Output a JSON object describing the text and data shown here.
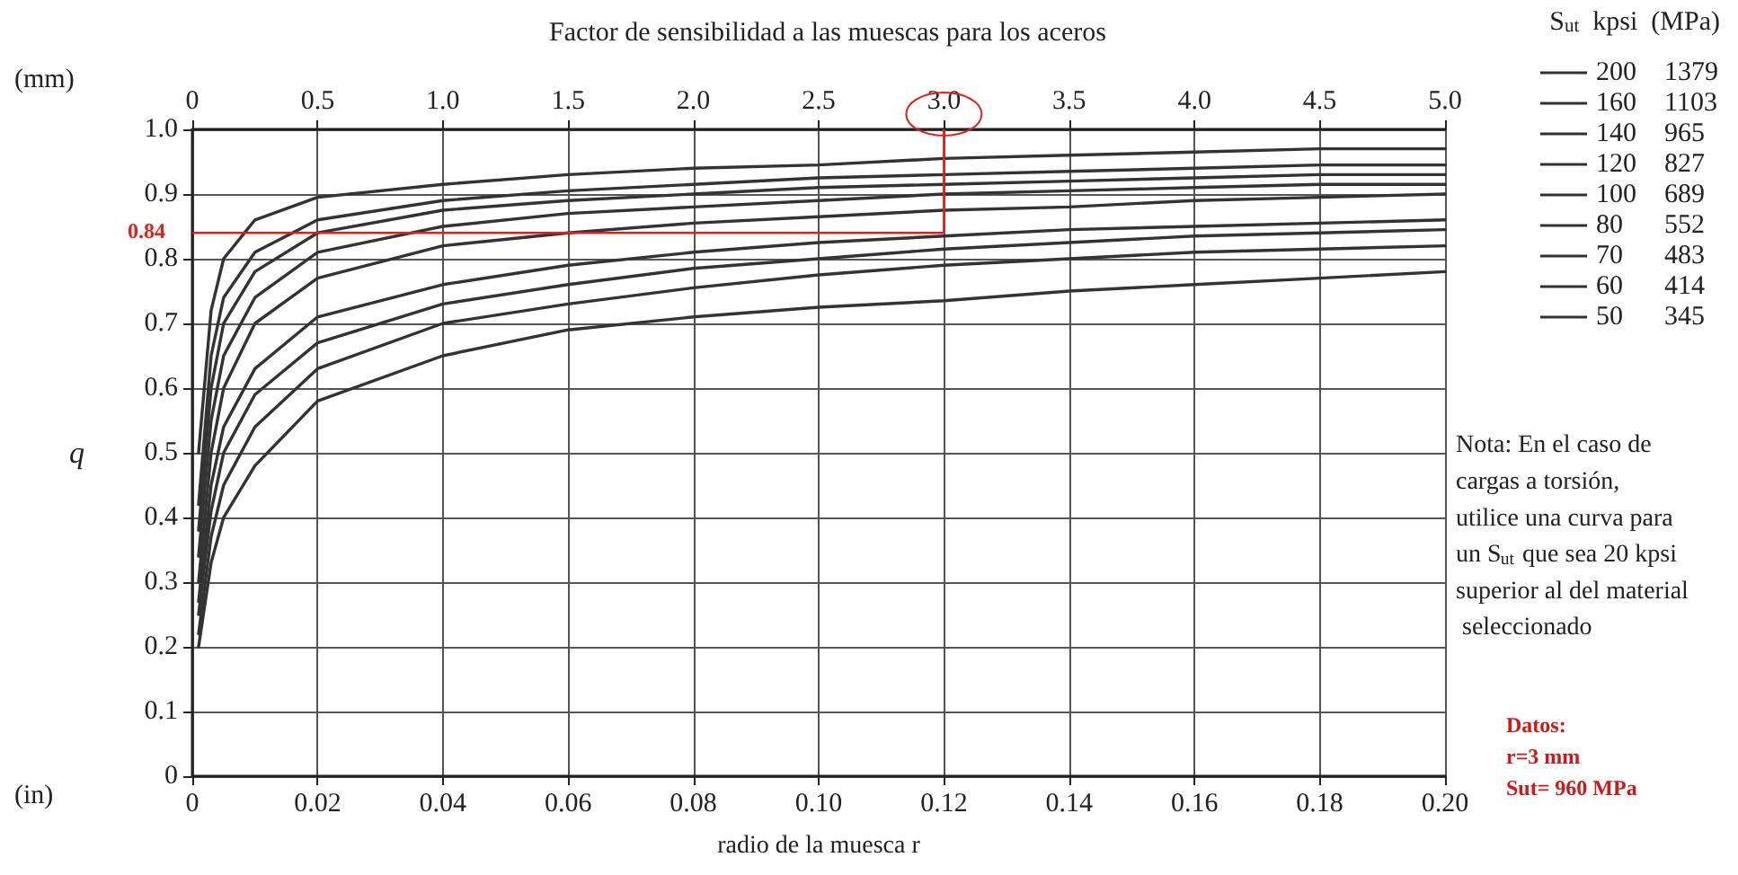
{
  "chart_data": {
    "type": "line",
    "title": "Factor de sensibilidad a las muescas para los aceros",
    "xlabel": "radio de la muesca r",
    "ylabel": "q",
    "x2label": "(mm)",
    "legend_title": "S$_{ut}$  kpsi  (MPa)",
    "x": [
      0.001,
      0.003,
      0.005,
      0.01,
      0.02,
      0.04,
      0.06,
      0.08,
      0.1,
      0.12,
      0.14,
      0.16,
      0.18,
      0.2
    ],
    "series": [
      {
        "name": "200  1379",
        "color": "#333333",
        "values": [
          0.5,
          0.72,
          0.8,
          0.86,
          0.895,
          0.915,
          0.93,
          0.94,
          0.945,
          0.955,
          0.96,
          0.965,
          0.97,
          0.97
        ]
      },
      {
        "name": "160  1103",
        "color": "#333333",
        "values": [
          0.42,
          0.65,
          0.74,
          0.81,
          0.86,
          0.89,
          0.905,
          0.915,
          0.925,
          0.93,
          0.935,
          0.94,
          0.945,
          0.945
        ]
      },
      {
        "name": "140  965",
        "color": "#333333",
        "values": [
          0.38,
          0.6,
          0.7,
          0.78,
          0.84,
          0.875,
          0.89,
          0.9,
          0.91,
          0.915,
          0.92,
          0.925,
          0.93,
          0.93
        ]
      },
      {
        "name": "120  827",
        "color": "#333333",
        "values": [
          0.34,
          0.55,
          0.65,
          0.74,
          0.81,
          0.85,
          0.87,
          0.88,
          0.89,
          0.9,
          0.905,
          0.91,
          0.915,
          0.915
        ]
      },
      {
        "name": "100  689",
        "color": "#333333",
        "values": [
          0.3,
          0.5,
          0.6,
          0.7,
          0.77,
          0.82,
          0.84,
          0.855,
          0.865,
          0.875,
          0.88,
          0.89,
          0.895,
          0.9
        ]
      },
      {
        "name": "80  552",
        "color": "#333333",
        "values": [
          0.27,
          0.45,
          0.54,
          0.63,
          0.71,
          0.76,
          0.79,
          0.81,
          0.825,
          0.835,
          0.845,
          0.85,
          0.855,
          0.86
        ]
      },
      {
        "name": "70  483",
        "color": "#333333",
        "values": [
          0.25,
          0.41,
          0.5,
          0.59,
          0.67,
          0.73,
          0.76,
          0.785,
          0.8,
          0.815,
          0.825,
          0.835,
          0.84,
          0.845
        ]
      },
      {
        "name": "60  414",
        "color": "#333333",
        "values": [
          0.22,
          0.37,
          0.45,
          0.54,
          0.63,
          0.7,
          0.73,
          0.755,
          0.775,
          0.79,
          0.8,
          0.81,
          0.815,
          0.82
        ]
      },
      {
        "name": "50  345",
        "color": "#333333",
        "values": [
          0.2,
          0.33,
          0.4,
          0.48,
          0.58,
          0.65,
          0.69,
          0.71,
          0.725,
          0.735,
          0.75,
          0.76,
          0.77,
          0.78
        ]
      }
    ],
    "xlim": [
      0,
      0.2
    ],
    "xticks": [
      0,
      0.02,
      0.04,
      0.06,
      0.08,
      {
        "value": 0.1,
        "label": "0.10"
      },
      0.12,
      0.14,
      0.16,
      0.18,
      {
        "value": 0.2,
        "label": "0.20"
      }
    ],
    "x2lim": [
      0,
      5
    ],
    "x2ticks": [
      0,
      0.5,
      {
        "value": 1,
        "label": "1.0"
      },
      1.5,
      {
        "value": 2,
        "label": "2.0"
      },
      2.5,
      {
        "value": 3,
        "label": "3.0"
      },
      3.5,
      {
        "value": 4,
        "label": "4.0"
      },
      4.5,
      {
        "value": 5,
        "label": "5.0"
      }
    ],
    "ylim": [
      0,
      1
    ],
    "yticks": [
      0,
      0.1,
      0.2,
      0.3,
      0.4,
      0.5,
      0.6,
      0.7,
      0.8,
      0.9,
      {
        "value": 1,
        "label": "1.0"
      }
    ],
    "ref_lines": [
      {
        "axis": "y",
        "value": 0.84,
        "label": "0.84",
        "color": "#e0201c"
      },
      {
        "axis": "x2",
        "value": 3.0,
        "color": "#e0201c"
      }
    ],
    "annotations": [
      "(in)",
      "Nota: En el caso de cargas a torsión, utilice una curva para un S$_{ut}$ que sea 20 kpsi superior al del material seleccionado",
      "Datos:\nr=3 mm\nSut= 960 MPa"
    ],
    "grid": true,
    "legend": "right",
    "marker": "none",
    "line_style": "solid"
  }
}
